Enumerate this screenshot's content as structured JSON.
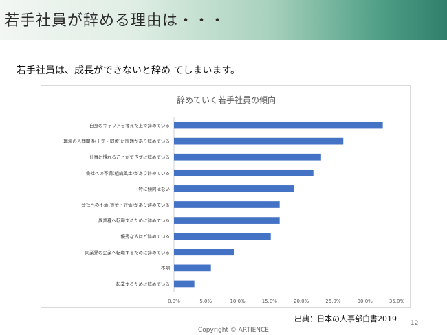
{
  "slide": {
    "title": "若手社員が辞める理由は・・・",
    "lead": "若手社員は、成長ができないと辞め てしまいます。",
    "source": "出典：日本の人事部白書2019",
    "page_number": "12",
    "copyright": "Copyright © ARTIENCE"
  },
  "colors": {
    "bar": "#4472c4",
    "header_accent": "#2f7f6c"
  },
  "chart_data": {
    "type": "bar",
    "orientation": "horizontal",
    "title": "辞めていく若手社員の傾向",
    "categories": [
      "自身のキャリアを考えた上で辞めている",
      "職場の人間関係(上司・同僚)に問題があり辞めている",
      "仕事に慣れることができずに辞めている",
      "会社への不満(組織風土)があり辞めている",
      "特に傾向はない",
      "会社への不満(賃金・評価)があり辞めている",
      "異業種へ転職するために辞めている",
      "優秀な人ほど辞めている",
      "同業界の企業へ転職するために辞めている",
      "不明",
      "起業するために辞めている"
    ],
    "values": [
      0.328,
      0.266,
      0.231,
      0.219,
      0.188,
      0.166,
      0.166,
      0.152,
      0.094,
      0.058,
      0.032
    ],
    "xlim": [
      0,
      0.35
    ],
    "xticks": [
      "0.0%",
      "5.0%",
      "10.0%",
      "15.0%",
      "20.0%",
      "25.0%",
      "30.0%",
      "35.0%"
    ],
    "grid": false,
    "legend": "none"
  }
}
